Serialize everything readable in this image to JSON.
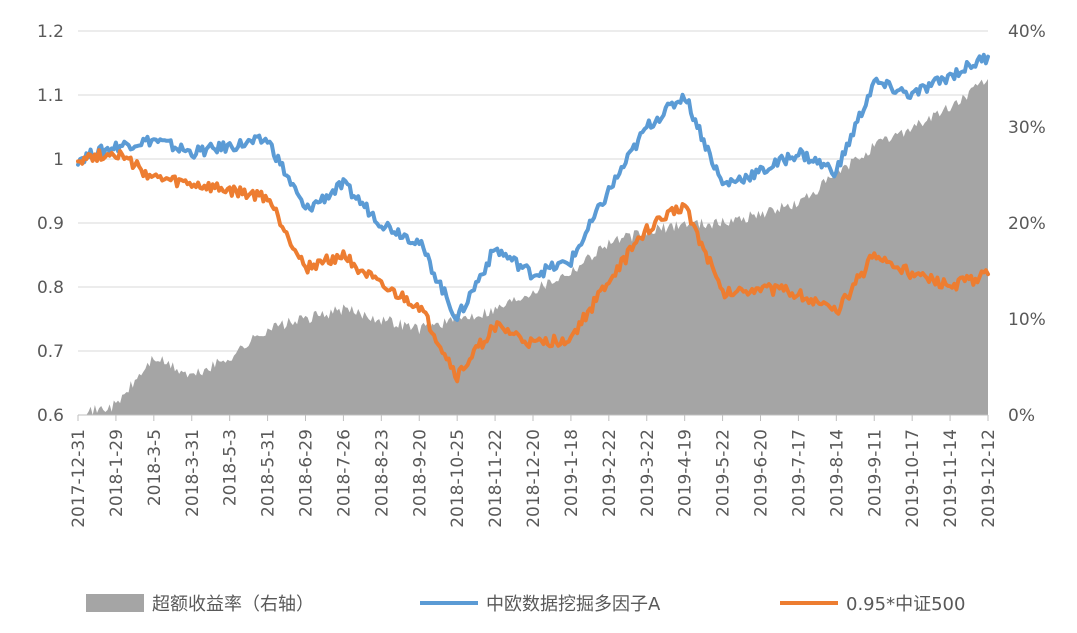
{
  "chart_data": {
    "type": "line",
    "title": "",
    "x": [
      "2017-12-31",
      "2018-1-29",
      "2018-3-5",
      "2018-3-31",
      "2018-5-3",
      "2018-5-31",
      "2018-6-29",
      "2018-7-26",
      "2018-8-23",
      "2018-9-20",
      "2018-10-25",
      "2018-11-22",
      "2018-12-20",
      "2019-1-18",
      "2019-2-22",
      "2019-3-22",
      "2019-4-19",
      "2019-5-22",
      "2019-6-20",
      "2019-7-17",
      "2019-8-14",
      "2019-9-11",
      "2019-10-17",
      "2019-11-14",
      "2019-12-12"
    ],
    "y_left": {
      "ticks": [
        "0.6",
        "0.7",
        "0.8",
        "0.9",
        "1",
        "1.1",
        "1.2"
      ],
      "range": [
        0.6,
        1.2
      ]
    },
    "y_right": {
      "ticks": [
        "0%",
        "10%",
        "20%",
        "30%",
        "40%"
      ],
      "range": [
        0,
        40
      ]
    },
    "series": [
      {
        "name": "超额收益率（右轴）",
        "kind": "area",
        "axis": "right",
        "color": "#a5a5a5",
        "values": [
          0,
          1,
          6,
          4,
          6,
          9,
          10,
          11,
          10,
          9,
          10,
          11,
          13,
          15,
          18,
          19,
          20,
          20,
          21,
          22,
          25,
          28,
          30,
          32,
          35
        ]
      },
      {
        "name": "中欧数据挖掘多因子A",
        "kind": "line",
        "axis": "left",
        "color": "#5b9bd5",
        "values": [
          1.0,
          1.02,
          1.03,
          1.01,
          1.02,
          1.03,
          0.92,
          0.96,
          0.9,
          0.87,
          0.75,
          0.86,
          0.82,
          0.84,
          0.95,
          1.05,
          1.1,
          0.96,
          0.98,
          1.01,
          0.98,
          1.12,
          1.1,
          1.13,
          1.16
        ]
      },
      {
        "name": "0.95*中证500",
        "kind": "line",
        "axis": "left",
        "color": "#ed7d31",
        "values": [
          1.0,
          1.01,
          0.97,
          0.96,
          0.95,
          0.94,
          0.83,
          0.85,
          0.8,
          0.77,
          0.66,
          0.74,
          0.71,
          0.72,
          0.81,
          0.89,
          0.93,
          0.79,
          0.8,
          0.79,
          0.76,
          0.85,
          0.82,
          0.8,
          0.82
        ]
      }
    ],
    "legend_position": "bottom",
    "grid": true
  }
}
